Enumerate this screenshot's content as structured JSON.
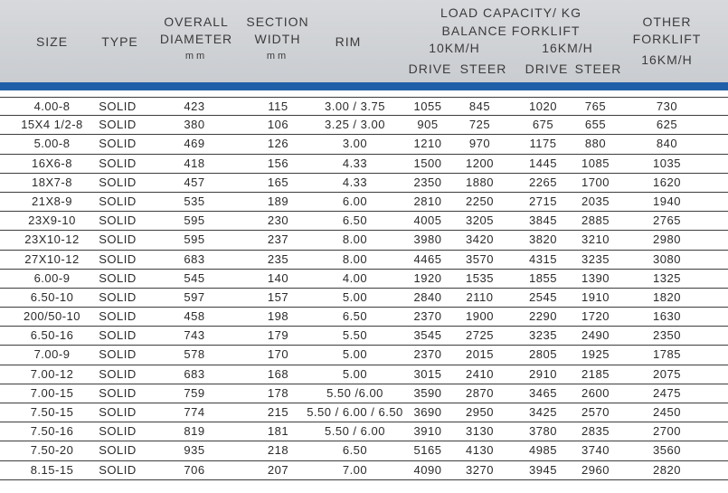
{
  "header": {
    "size": "SIZE",
    "type": "TYPE",
    "overall_diameter_1": "OVERALL",
    "overall_diameter_2": "DIAMETER",
    "overall_diameter_unit": "mm",
    "section_width_1": "SECTION",
    "section_width_2": "WIDTH",
    "section_width_unit": "mm",
    "rim": "RIM",
    "load_capacity": "LOAD CAPACITY/ KG",
    "balance_forklift": "BALANCE FORKLIFT",
    "speed_10": "10KM/H",
    "speed_16": "16KM/H",
    "drive_10": "DRIVE",
    "steer_10": "STEER",
    "drive_16": "DRIVE",
    "steer_16": "STEER",
    "other_1": "OTHER",
    "other_2": "FORKLIFT",
    "other_3": "16KM/H"
  },
  "rows": [
    {
      "size": "4.00-8",
      "type": "SOLID",
      "diameter": "423",
      "width": "115",
      "rim": "3.00 / 3.75",
      "d10": "1055",
      "s10": "845",
      "d16": "1020",
      "s16": "765",
      "other": "730"
    },
    {
      "size": "15X4 1/2-8",
      "type": "SOLID",
      "diameter": "380",
      "width": "106",
      "rim": "3.25 / 3.00",
      "d10": "905",
      "s10": "725",
      "d16": "675",
      "s16": "655",
      "other": "625"
    },
    {
      "size": "5.00-8",
      "type": "SOLID",
      "diameter": "469",
      "width": "126",
      "rim": "3.00",
      "d10": "1210",
      "s10": "970",
      "d16": "1175",
      "s16": "880",
      "other": "840"
    },
    {
      "size": "16X6-8",
      "type": "SOLID",
      "diameter": "418",
      "width": "156",
      "rim": "4.33",
      "d10": "1500",
      "s10": "1200",
      "d16": "1445",
      "s16": "1085",
      "other": "1035"
    },
    {
      "size": "18X7-8",
      "type": "SOLID",
      "diameter": "457",
      "width": "165",
      "rim": "4.33",
      "d10": "2350",
      "s10": "1880",
      "d16": "2265",
      "s16": "1700",
      "other": "1620"
    },
    {
      "size": "21X8-9",
      "type": "SOLID",
      "diameter": "535",
      "width": "189",
      "rim": "6.00",
      "d10": "2810",
      "s10": "2250",
      "d16": "2715",
      "s16": "2035",
      "other": "1940"
    },
    {
      "size": "23X9-10",
      "type": "SOLID",
      "diameter": "595",
      "width": "230",
      "rim": "6.50",
      "d10": "4005",
      "s10": "3205",
      "d16": "3845",
      "s16": "2885",
      "other": "2765"
    },
    {
      "size": "23X10-12",
      "type": "SOLID",
      "diameter": "595",
      "width": "237",
      "rim": "8.00",
      "d10": "3980",
      "s10": "3420",
      "d16": "3820",
      "s16": "3210",
      "other": "2980"
    },
    {
      "size": "27X10-12",
      "type": "SOLID",
      "diameter": "683",
      "width": "235",
      "rim": "8.00",
      "d10": "4465",
      "s10": "3570",
      "d16": "4315",
      "s16": "3235",
      "other": "3080"
    },
    {
      "size": "6.00-9",
      "type": "SOLID",
      "diameter": "545",
      "width": "140",
      "rim": "4.00",
      "d10": "1920",
      "s10": "1535",
      "d16": "1855",
      "s16": "1390",
      "other": "1325"
    },
    {
      "size": "6.50-10",
      "type": "SOLID",
      "diameter": "597",
      "width": "157",
      "rim": "5.00",
      "d10": "2840",
      "s10": "2110",
      "d16": "2545",
      "s16": "1910",
      "other": "1820"
    },
    {
      "size": "200/50-10",
      "type": "SOLID",
      "diameter": "458",
      "width": "198",
      "rim": "6.50",
      "d10": "2370",
      "s10": "1900",
      "d16": "2290",
      "s16": "1720",
      "other": "1630"
    },
    {
      "size": "6.50-16",
      "type": "SOLID",
      "diameter": "743",
      "width": "179",
      "rim": "5.50",
      "d10": "3545",
      "s10": "2725",
      "d16": "3235",
      "s16": "2490",
      "other": "2350"
    },
    {
      "size": "7.00-9",
      "type": "SOLID",
      "diameter": "578",
      "width": "170",
      "rim": "5.00",
      "d10": "2370",
      "s10": "2015",
      "d16": "2805",
      "s16": "1925",
      "other": "1785"
    },
    {
      "size": "7.00-12",
      "type": "SOLID",
      "diameter": "683",
      "width": "168",
      "rim": "5.00",
      "d10": "3015",
      "s10": "2410",
      "d16": "2910",
      "s16": "2185",
      "other": "2075"
    },
    {
      "size": "7.00-15",
      "type": "SOLID",
      "diameter": "759",
      "width": "178",
      "rim": "5.50 /6.00",
      "d10": "3590",
      "s10": "2870",
      "d16": "3465",
      "s16": "2600",
      "other": "2475"
    },
    {
      "size": "7.50-15",
      "type": "SOLID",
      "diameter": "774",
      "width": "215",
      "rim": "5.50 / 6.00 / 6.50",
      "d10": "3690",
      "s10": "2950",
      "d16": "3425",
      "s16": "2570",
      "other": "2450"
    },
    {
      "size": "7.50-16",
      "type": "SOLID",
      "diameter": "819",
      "width": "181",
      "rim": "5.50 / 6.00",
      "d10": "3910",
      "s10": "3130",
      "d16": "3780",
      "s16": "2835",
      "other": "2700"
    },
    {
      "size": "7.50-20",
      "type": "SOLID",
      "diameter": "935",
      "width": "218",
      "rim": "6.50",
      "d10": "5165",
      "s10": "4130",
      "d16": "4985",
      "s16": "3740",
      "other": "3560"
    },
    {
      "size": "8.15-15",
      "type": "SOLID",
      "diameter": "706",
      "width": "207",
      "rim": "7.00",
      "d10": "4090",
      "s10": "3270",
      "d16": "3945",
      "s16": "2960",
      "other": "2820"
    }
  ]
}
